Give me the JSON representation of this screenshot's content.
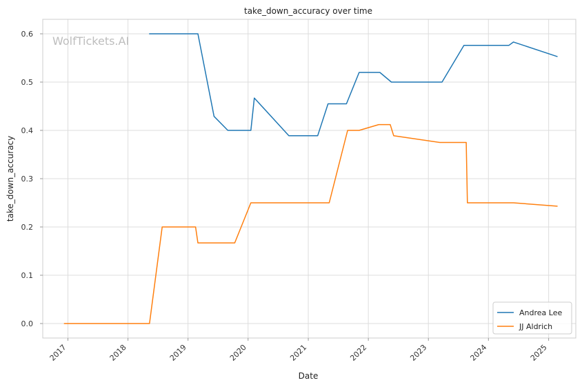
{
  "watermark": "WolfTickets.AI",
  "chart_data": {
    "type": "line",
    "title": "take_down_accuracy over time",
    "xlabel": "Date",
    "ylabel": "take_down_accuracy",
    "xlim": [
      "2016-08-01",
      "2025-06-15"
    ],
    "ylim": [
      -0.03,
      0.63
    ],
    "x_ticks": [
      "2017-01-01",
      "2018-01-01",
      "2019-01-01",
      "2020-01-01",
      "2021-01-01",
      "2022-01-01",
      "2023-01-01",
      "2024-01-01",
      "2025-01-01"
    ],
    "x_tick_labels": [
      "2017",
      "2018",
      "2019",
      "2020",
      "2021",
      "2022",
      "2023",
      "2024",
      "2025"
    ],
    "y_ticks": [
      0.0,
      0.1,
      0.2,
      0.3,
      0.4,
      0.5,
      0.6
    ],
    "y_tick_labels": [
      "0.0",
      "0.1",
      "0.2",
      "0.3",
      "0.4",
      "0.5",
      "0.6"
    ],
    "grid": true,
    "legend_position": "bottom-right",
    "series": [
      {
        "name": "Andrea Lee",
        "color": "#1f77b4",
        "points": [
          [
            "2018-05-12",
            0.6
          ],
          [
            "2019-03-02",
            0.6
          ],
          [
            "2019-06-08",
            0.429
          ],
          [
            "2019-08-31",
            0.4
          ],
          [
            "2020-01-18",
            0.4
          ],
          [
            "2020-02-08",
            0.467
          ],
          [
            "2020-09-05",
            0.389
          ],
          [
            "2021-02-27",
            0.389
          ],
          [
            "2021-05-01",
            0.455
          ],
          [
            "2021-08-21",
            0.455
          ],
          [
            "2021-11-06",
            0.52
          ],
          [
            "2022-03-12",
            0.52
          ],
          [
            "2022-05-21",
            0.5
          ],
          [
            "2023-03-25",
            0.5
          ],
          [
            "2023-08-05",
            0.576
          ],
          [
            "2024-05-04",
            0.576
          ],
          [
            "2024-06-01",
            0.583
          ],
          [
            "2025-02-22",
            0.553
          ]
        ]
      },
      {
        "name": "JJ Aldrich",
        "color": "#ff7f0e",
        "points": [
          [
            "2016-12-10",
            0.0
          ],
          [
            "2018-05-12",
            0.0
          ],
          [
            "2018-07-28",
            0.2
          ],
          [
            "2019-02-16",
            0.2
          ],
          [
            "2019-03-02",
            0.167
          ],
          [
            "2019-10-12",
            0.167
          ],
          [
            "2020-01-18",
            0.25
          ],
          [
            "2021-05-08",
            0.25
          ],
          [
            "2021-08-28",
            0.4
          ],
          [
            "2021-11-06",
            0.4
          ],
          [
            "2022-03-05",
            0.412
          ],
          [
            "2022-05-14",
            0.412
          ],
          [
            "2022-06-04",
            0.389
          ],
          [
            "2023-03-11",
            0.375
          ],
          [
            "2023-08-19",
            0.375
          ],
          [
            "2023-08-26",
            0.25
          ],
          [
            "2024-06-01",
            0.25
          ],
          [
            "2025-02-22",
            0.243
          ]
        ]
      }
    ]
  }
}
